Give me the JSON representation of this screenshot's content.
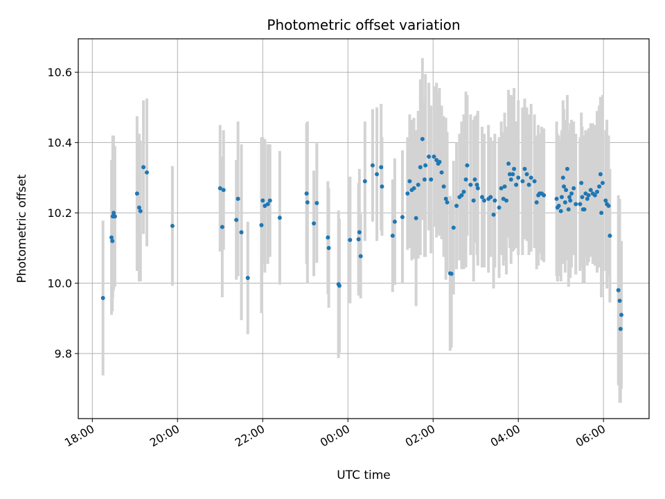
{
  "chart_data": {
    "type": "scatter",
    "title": "Photometric offset variation",
    "xlabel": "UTC time",
    "ylabel": "Photometric offset",
    "x_unit": "hours (UTC), continuing past midnight",
    "xlim": [
      17.67,
      31.07
    ],
    "ylim": [
      9.615,
      10.695
    ],
    "x_ticks": [
      {
        "value": 18,
        "label": "18:00"
      },
      {
        "value": 20,
        "label": "20:00"
      },
      {
        "value": 22,
        "label": "22:00"
      },
      {
        "value": 24,
        "label": "00:00"
      },
      {
        "value": 26,
        "label": "02:00"
      },
      {
        "value": 28,
        "label": "04:00"
      },
      {
        "value": 30,
        "label": "06:00"
      }
    ],
    "y_ticks": [
      {
        "value": 9.8,
        "label": "9.8"
      },
      {
        "value": 10.0,
        "label": "10.0"
      },
      {
        "value": 10.2,
        "label": "10.2"
      },
      {
        "value": 10.4,
        "label": "10.4"
      },
      {
        "value": 10.6,
        "label": "10.6"
      }
    ],
    "grid": true,
    "colors": {
      "point": "#1f77b4",
      "errorbar": "#d3d3d3",
      "grid": "#b0b0b0"
    },
    "series": [
      {
        "points": [
          [
            18.25,
            9.958,
            0.22
          ],
          [
            18.45,
            10.13,
            0.22
          ],
          [
            18.47,
            10.12,
            0.2
          ],
          [
            18.48,
            10.19,
            0.23
          ],
          [
            18.5,
            10.2,
            0.22
          ],
          [
            18.53,
            10.19,
            0.2
          ],
          [
            19.05,
            10.255,
            0.22
          ],
          [
            19.1,
            10.215,
            0.21
          ],
          [
            19.13,
            10.205,
            0.2
          ],
          [
            19.2,
            10.33,
            0.19
          ],
          [
            19.28,
            10.315,
            0.21
          ],
          [
            19.88,
            10.163,
            0.17
          ],
          [
            21.0,
            10.27,
            0.18
          ],
          [
            21.05,
            10.16,
            0.2
          ],
          [
            21.08,
            10.265,
            0.17
          ],
          [
            21.38,
            10.18,
            0.17
          ],
          [
            21.42,
            10.24,
            0.22
          ],
          [
            21.5,
            10.145,
            0.25
          ],
          [
            21.65,
            10.015,
            0.16
          ],
          [
            21.97,
            10.165,
            0.25
          ],
          [
            22.0,
            10.235,
            0.18
          ],
          [
            22.05,
            10.22,
            0.19
          ],
          [
            22.12,
            10.225,
            0.17
          ],
          [
            22.17,
            10.235,
            0.16
          ],
          [
            22.4,
            10.186,
            0.19
          ],
          [
            23.03,
            10.255,
            0.2
          ],
          [
            23.05,
            10.23,
            0.23
          ],
          [
            23.2,
            10.17,
            0.15
          ],
          [
            23.27,
            10.228,
            0.17
          ],
          [
            23.53,
            10.13,
            0.16
          ],
          [
            23.55,
            10.1,
            0.17
          ],
          [
            23.78,
            9.997,
            0.21
          ],
          [
            23.8,
            9.993,
            0.19
          ],
          [
            24.05,
            10.123,
            0.18
          ],
          [
            24.25,
            10.125,
            0.16
          ],
          [
            24.27,
            10.145,
            0.18
          ],
          [
            24.3,
            10.077,
            0.12
          ],
          [
            24.4,
            10.29,
            0.17
          ],
          [
            24.58,
            10.335,
            0.16
          ],
          [
            24.68,
            10.31,
            0.19
          ],
          [
            24.78,
            10.33,
            0.18
          ],
          [
            24.8,
            10.275,
            0.14
          ],
          [
            25.05,
            10.135,
            0.16
          ],
          [
            25.1,
            10.175,
            0.18
          ],
          [
            25.28,
            10.188,
            0.19
          ],
          [
            25.4,
            10.255,
            0.16
          ],
          [
            25.45,
            10.29,
            0.19
          ],
          [
            25.5,
            10.265,
            0.2
          ],
          [
            25.55,
            10.27,
            0.2
          ],
          [
            25.6,
            10.185,
            0.25
          ],
          [
            25.65,
            10.28,
            0.21
          ],
          [
            25.7,
            10.33,
            0.25
          ],
          [
            25.75,
            10.41,
            0.23
          ],
          [
            25.8,
            10.295,
            0.22
          ],
          [
            25.82,
            10.335,
            0.26
          ],
          [
            25.9,
            10.36,
            0.21
          ],
          [
            25.95,
            10.295,
            0.21
          ],
          [
            26.02,
            10.36,
            0.2
          ],
          [
            26.08,
            10.35,
            0.22
          ],
          [
            26.12,
            10.34,
            0.2
          ],
          [
            26.15,
            10.345,
            0.21
          ],
          [
            26.2,
            10.315,
            0.19
          ],
          [
            26.25,
            10.275,
            0.2
          ],
          [
            26.3,
            10.24,
            0.23
          ],
          [
            26.33,
            10.23,
            0.2
          ],
          [
            26.4,
            10.028,
            0.22
          ],
          [
            26.43,
            10.027,
            0.21
          ],
          [
            26.48,
            10.158,
            0.19
          ],
          [
            26.55,
            10.22,
            0.18
          ],
          [
            26.62,
            10.245,
            0.18
          ],
          [
            26.67,
            10.25,
            0.21
          ],
          [
            26.72,
            10.26,
            0.22
          ],
          [
            26.77,
            10.295,
            0.25
          ],
          [
            26.8,
            10.335,
            0.2
          ],
          [
            26.88,
            10.28,
            0.2
          ],
          [
            26.95,
            10.235,
            0.23
          ],
          [
            26.98,
            10.295,
            0.18
          ],
          [
            27.03,
            10.28,
            0.2
          ],
          [
            27.05,
            10.27,
            0.22
          ],
          [
            27.15,
            10.245,
            0.2
          ],
          [
            27.2,
            10.235,
            0.19
          ],
          [
            27.3,
            10.24,
            0.21
          ],
          [
            27.35,
            10.245,
            0.17
          ],
          [
            27.42,
            10.195,
            0.21
          ],
          [
            27.45,
            10.235,
            0.19
          ],
          [
            27.55,
            10.215,
            0.2
          ],
          [
            27.6,
            10.27,
            0.19
          ],
          [
            27.65,
            10.24,
            0.19
          ],
          [
            27.68,
            10.275,
            0.21
          ],
          [
            27.72,
            10.235,
            0.21
          ],
          [
            27.77,
            10.34,
            0.21
          ],
          [
            27.8,
            10.31,
            0.21
          ],
          [
            27.83,
            10.295,
            0.24
          ],
          [
            27.87,
            10.31,
            0.22
          ],
          [
            27.9,
            10.325,
            0.23
          ],
          [
            27.95,
            10.28,
            0.18
          ],
          [
            28.0,
            10.3,
            0.22
          ],
          [
            28.1,
            10.29,
            0.21
          ],
          [
            28.15,
            10.325,
            0.2
          ],
          [
            28.2,
            10.31,
            0.19
          ],
          [
            28.25,
            10.28,
            0.2
          ],
          [
            28.3,
            10.3,
            0.21
          ],
          [
            28.38,
            10.29,
            0.19
          ],
          [
            28.43,
            10.23,
            0.19
          ],
          [
            28.47,
            10.25,
            0.2
          ],
          [
            28.5,
            10.255,
            0.17
          ],
          [
            28.55,
            10.255,
            0.19
          ],
          [
            28.6,
            10.25,
            0.19
          ],
          [
            28.9,
            10.24,
            0.22
          ],
          [
            28.92,
            10.215,
            0.21
          ],
          [
            28.95,
            10.22,
            0.2
          ],
          [
            29.0,
            10.205,
            0.2
          ],
          [
            29.02,
            10.245,
            0.19
          ],
          [
            29.05,
            10.3,
            0.22
          ],
          [
            29.07,
            10.275,
            0.22
          ],
          [
            29.1,
            10.23,
            0.2
          ],
          [
            29.12,
            10.265,
            0.2
          ],
          [
            29.15,
            10.325,
            0.21
          ],
          [
            29.18,
            10.21,
            0.22
          ],
          [
            29.2,
            10.245,
            0.19
          ],
          [
            29.22,
            10.235,
            0.22
          ],
          [
            29.25,
            10.255,
            0.21
          ],
          [
            29.3,
            10.27,
            0.19
          ],
          [
            29.35,
            10.225,
            0.2
          ],
          [
            29.45,
            10.225,
            0.19
          ],
          [
            29.48,
            10.285,
            0.2
          ],
          [
            29.5,
            10.245,
            0.2
          ],
          [
            29.52,
            10.21,
            0.21
          ],
          [
            29.55,
            10.21,
            0.21
          ],
          [
            29.58,
            10.255,
            0.18
          ],
          [
            29.62,
            10.24,
            0.19
          ],
          [
            29.65,
            10.25,
            0.19
          ],
          [
            29.7,
            10.265,
            0.19
          ],
          [
            29.75,
            10.255,
            0.2
          ],
          [
            29.8,
            10.25,
            0.2
          ],
          [
            29.85,
            10.26,
            0.23
          ],
          [
            29.9,
            10.275,
            0.23
          ],
          [
            29.93,
            10.31,
            0.22
          ],
          [
            29.95,
            10.2,
            0.24
          ],
          [
            29.98,
            10.285,
            0.25
          ],
          [
            30.05,
            10.235,
            0.2
          ],
          [
            30.08,
            10.225,
            0.24
          ],
          [
            30.12,
            10.22,
            0.2
          ],
          [
            30.15,
            10.135,
            0.19
          ],
          [
            30.35,
            9.98,
            0.27
          ],
          [
            30.38,
            9.95,
            0.29
          ],
          [
            30.4,
            9.87,
            0.21
          ],
          [
            30.42,
            9.91,
            0.21
          ]
        ]
      }
    ]
  }
}
